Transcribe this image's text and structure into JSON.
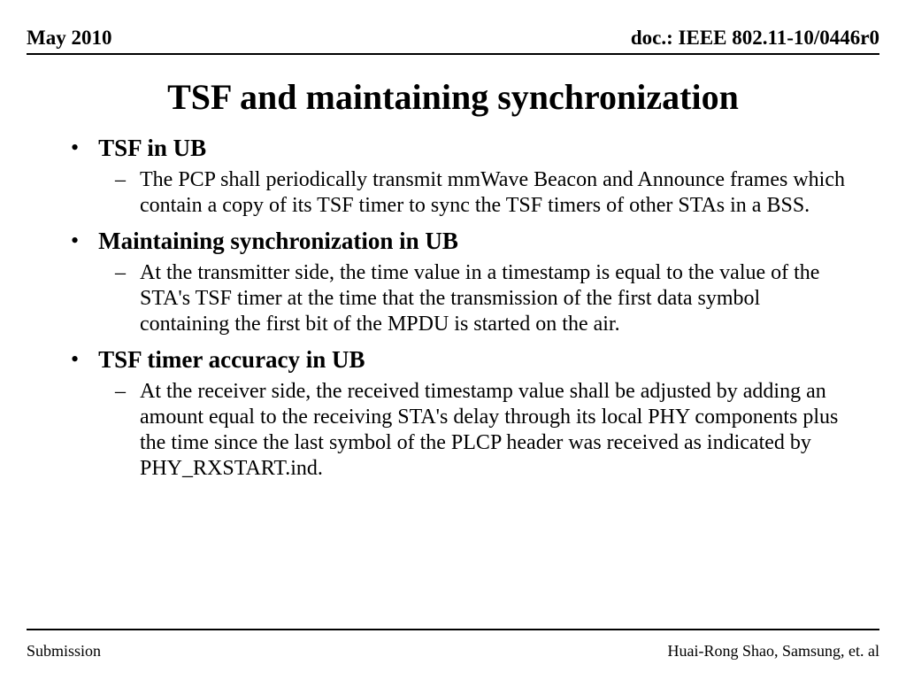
{
  "header": {
    "left": "May 2010",
    "right": "doc.: IEEE 802.11-10/0446r0"
  },
  "title": "TSF and maintaining synchronization",
  "bullets": [
    {
      "label": "TSF in UB",
      "sub": "The PCP shall periodically transmit mmWave Beacon and Announce frames which contain a copy of its TSF timer to sync the TSF timers of other STAs in a BSS."
    },
    {
      "label": "Maintaining synchronization in UB",
      "sub": "At the transmitter side, the time value in a timestamp is equal to the value of the STA's TSF timer at the time that the transmission of the first data symbol containing the first bit of the MPDU is started on the air."
    },
    {
      "label": "TSF timer accuracy in UB",
      "sub": "At the receiver side, the received timestamp value shall be adjusted by adding an amount equal to the receiving STA's delay through its local PHY components plus the time since the last symbol of the PLCP header was received as indicated by PHY_RXSTART.ind."
    }
  ],
  "footer": {
    "left": "Submission",
    "right": "Huai-Rong Shao, Samsung, et. al"
  }
}
